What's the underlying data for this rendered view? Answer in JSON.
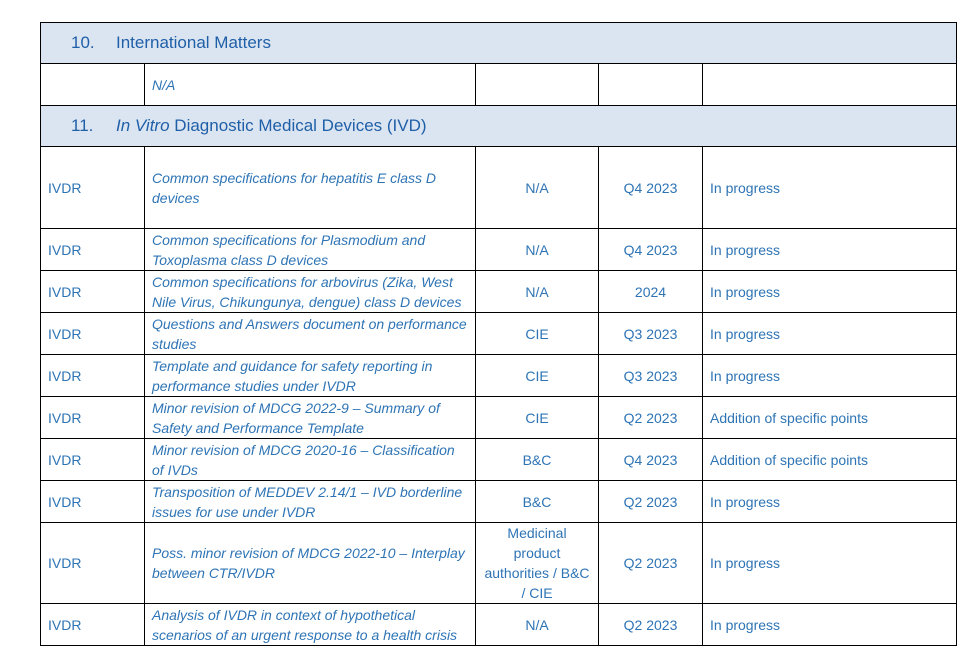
{
  "section10": {
    "number": "10.",
    "title": "International Matters"
  },
  "section10_row": {
    "topic": "N/A"
  },
  "section11": {
    "number": "11.",
    "title_italic": "In Vitro",
    "title_rest": " Diagnostic Medical Devices (IVD)"
  },
  "rows": [
    {
      "area": "IVDR",
      "topic": "Common specifications for hepatitis E class D devices",
      "lead": "N/A",
      "timeline": "Q4 2023",
      "status": "In progress"
    },
    {
      "area": "IVDR",
      "topic": "Common specifications for Plasmodium and Toxoplasma class D devices",
      "lead": "N/A",
      "timeline": "Q4 2023",
      "status": "In progress"
    },
    {
      "area": "IVDR",
      "topic": "Common specifications for arbovirus (Zika, West Nile Virus, Chikungunya, dengue) class D devices",
      "lead": "N/A",
      "timeline": "2024",
      "status": "In progress"
    },
    {
      "area": "IVDR",
      "topic": "Questions and Answers document on performance studies",
      "lead": "CIE",
      "timeline": "Q3 2023",
      "status": "In progress"
    },
    {
      "area": "IVDR",
      "topic": "Template and guidance for safety reporting in performance studies under IVDR",
      "lead": "CIE",
      "timeline": "Q3 2023",
      "status": "In progress"
    },
    {
      "area": "IVDR",
      "topic": "Minor revision of MDCG 2022-9 – Summary of Safety and Performance Template",
      "lead": "CIE",
      "timeline": "Q2 2023",
      "status": "Addition of specific points"
    },
    {
      "area": "IVDR",
      "topic": "Minor revision of MDCG 2020-16 – Classification of IVDs",
      "lead": "B&C",
      "timeline": "Q4 2023",
      "status": "Addition of specific points"
    },
    {
      "area": "IVDR",
      "topic": "Transposition of MEDDEV 2.14/1 – IVD borderline issues for use under IVDR",
      "lead": "B&C",
      "timeline": "Q2 2023",
      "status": "In progress"
    },
    {
      "area": "IVDR",
      "topic": "Poss. minor revision of MDCG 2022-10 – Interplay between CTR/IVDR",
      "lead": "Medicinal product authorities / B&C / CIE",
      "timeline": "Q2 2023",
      "status": "In progress"
    },
    {
      "area": "IVDR",
      "topic": "Analysis of IVDR in context of hypothetical scenarios of an urgent response to a health crisis",
      "lead": "N/A",
      "timeline": "Q2 2023",
      "status": "In progress"
    }
  ]
}
